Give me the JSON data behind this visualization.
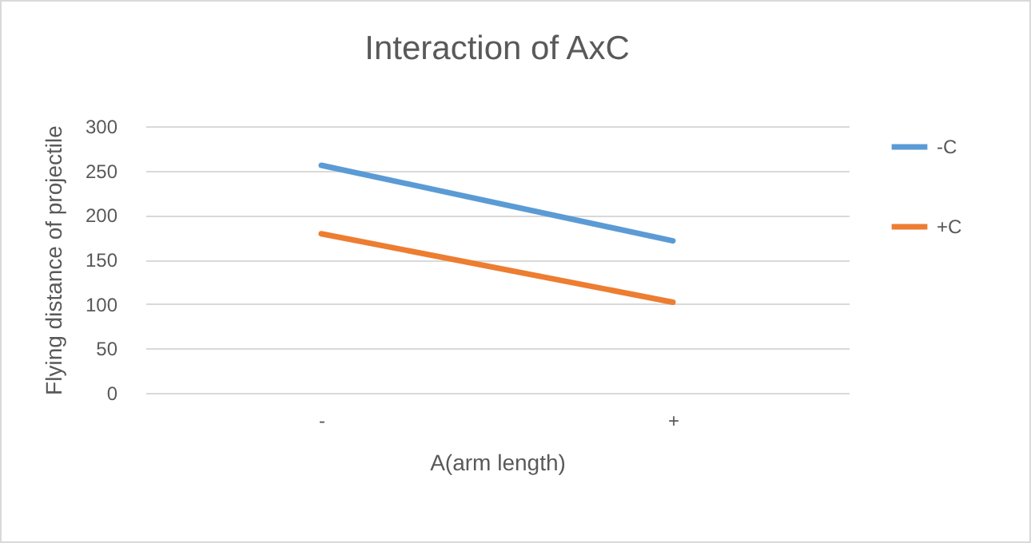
{
  "chart_data": {
    "type": "line",
    "title": "Interaction of AxC",
    "xlabel": "A(arm length)",
    "ylabel": "Flying distance of projectile",
    "categories": [
      "-",
      "+"
    ],
    "series": [
      {
        "name": "-C",
        "color": "#5b9bd5",
        "values": [
          256,
          171
        ]
      },
      {
        "name": "+C",
        "color": "#ed7d31",
        "values": [
          179,
          102
        ]
      }
    ],
    "ylim": [
      0,
      300
    ],
    "yticks": [
      0,
      50,
      100,
      150,
      200,
      250,
      300
    ],
    "grid": "y",
    "legend": "right"
  }
}
